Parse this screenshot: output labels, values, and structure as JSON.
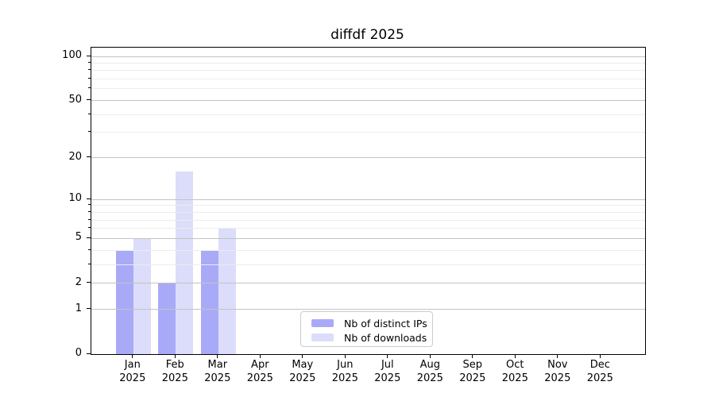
{
  "chart_data": {
    "type": "bar",
    "title": "diffdf 2025",
    "categories": [
      "Jan",
      "Feb",
      "Mar",
      "Apr",
      "May",
      "Jun",
      "Jul",
      "Aug",
      "Sep",
      "Oct",
      "Nov",
      "Dec"
    ],
    "x_tick_year": "2025",
    "series": [
      {
        "name": "Nb of distinct IPs",
        "color": "#a9aaf7",
        "values": [
          4,
          2,
          4,
          0,
          0,
          0,
          0,
          0,
          0,
          0,
          0,
          0
        ]
      },
      {
        "name": "Nb of downloads",
        "color": "#dcddfa",
        "values": [
          5,
          16,
          6,
          0,
          0,
          0,
          0,
          0,
          0,
          0,
          0,
          0
        ]
      }
    ],
    "xlabel": "",
    "ylabel": "",
    "y_scale": "log1p",
    "y_major_ticks": [
      0,
      1,
      2,
      5,
      10,
      20,
      50,
      100
    ],
    "y_minor_ticks": [
      3,
      4,
      6,
      7,
      8,
      9,
      30,
      40,
      60,
      70,
      80,
      90
    ],
    "ylim": [
      0,
      115
    ],
    "grid": "on",
    "grid_above_bars": true,
    "legend_position": "lower-center",
    "colors": {
      "major_grid": "#c3c3c3",
      "minor_grid": "#ececec",
      "spine": "#000000",
      "background": "#ffffff"
    }
  }
}
